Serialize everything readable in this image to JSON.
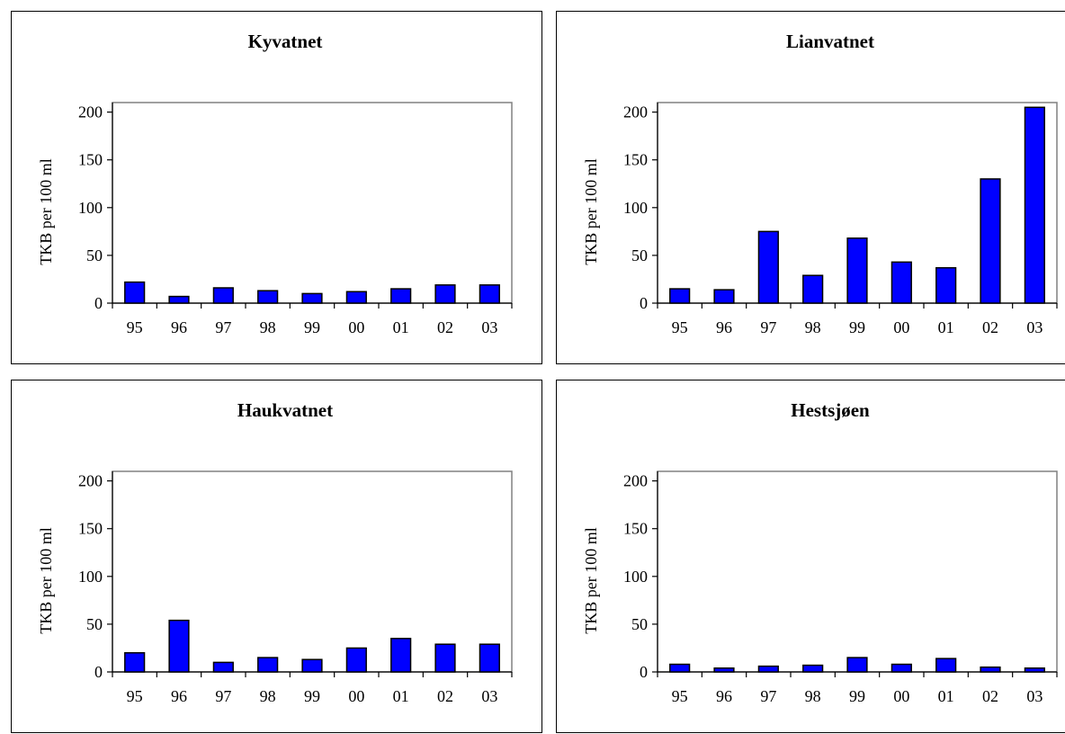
{
  "chart_data": [
    {
      "type": "bar",
      "title": "Kyvatnet",
      "ylabel": "TKB per 100 ml",
      "xlabel": "",
      "categories": [
        "95",
        "96",
        "97",
        "98",
        "99",
        "00",
        "01",
        "02",
        "03"
      ],
      "values": [
        22,
        7,
        16,
        13,
        10,
        12,
        15,
        19,
        19
      ],
      "ylim": [
        0,
        210
      ],
      "yticks": [
        "0",
        "50",
        "100",
        "150",
        "200"
      ],
      "grid": false,
      "bar_color": "#0000ff"
    },
    {
      "type": "bar",
      "title": "Lianvatnet",
      "ylabel": "TKB per 100 ml",
      "xlabel": "",
      "categories": [
        "95",
        "96",
        "97",
        "98",
        "99",
        "00",
        "01",
        "02",
        "03"
      ],
      "values": [
        15,
        14,
        75,
        29,
        68,
        43,
        37,
        130,
        205
      ],
      "ylim": [
        0,
        210
      ],
      "yticks": [
        "0",
        "50",
        "100",
        "150",
        "200"
      ],
      "grid": false,
      "bar_color": "#0000ff"
    },
    {
      "type": "bar",
      "title": "Haukvatnet",
      "ylabel": "TKB per 100 ml",
      "xlabel": "",
      "categories": [
        "95",
        "96",
        "97",
        "98",
        "99",
        "00",
        "01",
        "02",
        "03"
      ],
      "values": [
        20,
        54,
        10,
        15,
        13,
        25,
        35,
        29,
        29
      ],
      "ylim": [
        0,
        210
      ],
      "yticks": [
        "0",
        "50",
        "100",
        "150",
        "200"
      ],
      "grid": false,
      "bar_color": "#0000ff"
    },
    {
      "type": "bar",
      "title": "Hestsjøen",
      "ylabel": "TKB per 100 ml",
      "xlabel": "",
      "categories": [
        "95",
        "96",
        "97",
        "98",
        "99",
        "00",
        "01",
        "02",
        "03"
      ],
      "values": [
        8,
        4,
        6,
        7,
        15,
        8,
        14,
        5,
        4
      ],
      "ylim": [
        0,
        210
      ],
      "yticks": [
        "0",
        "50",
        "100",
        "150",
        "200"
      ],
      "grid": false,
      "bar_color": "#0000ff"
    }
  ]
}
